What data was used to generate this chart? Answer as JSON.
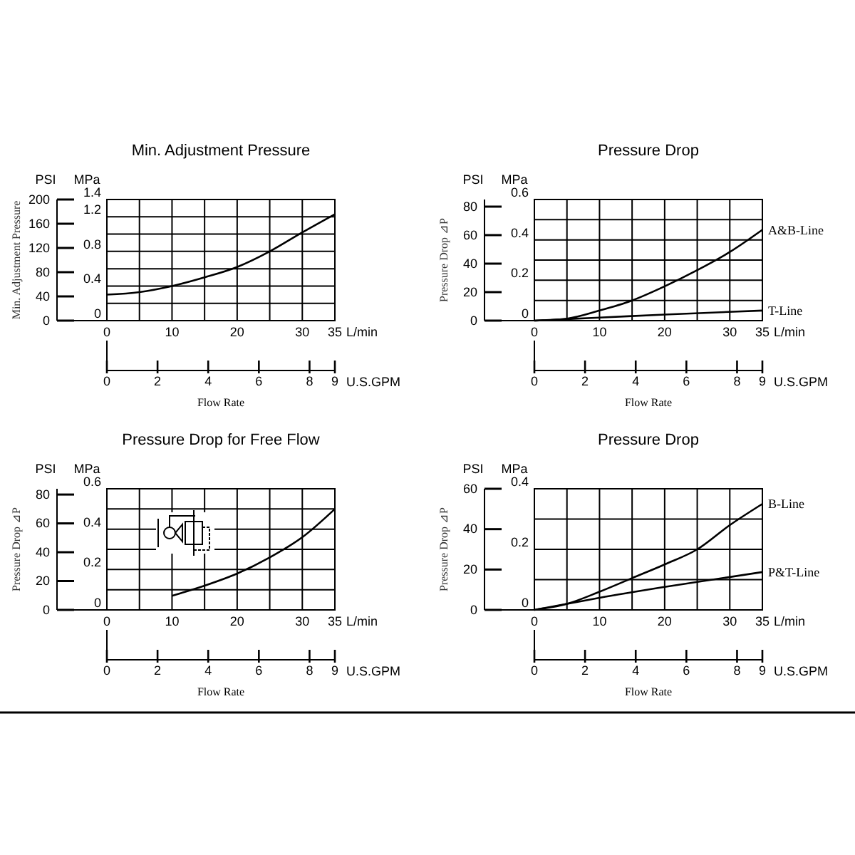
{
  "chart_data": [
    {
      "type": "line",
      "title": "Min. Adjustment Pressure",
      "xlabel": "Flow Rate",
      "y2label": "Min. Adjustment Pressure",
      "annotations": [
        "PSI",
        "MPa",
        "L/min",
        "U.S.GPM"
      ],
      "grid": true,
      "xlim": [
        0,
        35
      ],
      "xticks": [
        0,
        {
          "value": 5,
          "label": null
        },
        10,
        {
          "value": 15,
          "label": null
        },
        20,
        {
          "value": 25,
          "label": null
        },
        30,
        35
      ],
      "ylim": [
        0,
        1.4
      ],
      "yticks": [
        0,
        {
          "value": 0.2,
          "label": null
        },
        0.4,
        {
          "value": 0.6,
          "label": null
        },
        0.8,
        {
          "value": 1.0,
          "label": null
        },
        1.2,
        1.4
      ],
      "y2lim": [
        0,
        200
      ],
      "y2ticks": [
        0,
        40,
        80,
        120,
        160,
        200
      ],
      "x2lim": [
        0,
        9
      ],
      "x2ticks": [
        0,
        2,
        4,
        6,
        8,
        9
      ],
      "series": [
        {
          "color": "#000000",
          "x": [
            0,
            5,
            10,
            15,
            20,
            25,
            30,
            35
          ],
          "values": [
            0.3,
            0.33,
            0.4,
            0.5,
            0.62,
            0.8,
            1.02,
            1.23
          ]
        }
      ]
    },
    {
      "type": "line",
      "title": "Pressure Drop",
      "xlabel": "Flow Rate",
      "y2label": "Pressure Drop ⊿P",
      "annotations": [
        "PSI",
        "MPa",
        "L/min",
        "U.S.GPM"
      ],
      "grid": true,
      "xlim": [
        0,
        35
      ],
      "xticks": [
        0,
        {
          "value": 5,
          "label": null
        },
        10,
        {
          "value": 15,
          "label": null
        },
        20,
        {
          "value": 25,
          "label": null
        },
        30,
        35
      ],
      "ylim": [
        0,
        0.6
      ],
      "yticks": [
        0,
        {
          "value": 0.1,
          "label": null
        },
        0.2,
        {
          "value": 0.3,
          "label": null
        },
        0.4,
        {
          "value": 0.5,
          "label": null
        },
        0.6
      ],
      "y2lim": [
        0,
        85
      ],
      "y2ticks": [
        0,
        20,
        40,
        60,
        80
      ],
      "x2lim": [
        0,
        9
      ],
      "x2ticks": [
        0,
        2,
        4,
        6,
        8,
        9
      ],
      "series": [
        {
          "name": "A&B-Line",
          "color": "#000000",
          "x": [
            0,
            5,
            10,
            15,
            20,
            25,
            30,
            35
          ],
          "values": [
            0,
            0.01,
            0.05,
            0.1,
            0.17,
            0.25,
            0.34,
            0.45
          ]
        },
        {
          "name": "T-Line",
          "color": "#000000",
          "x": [
            0,
            10,
            20,
            35
          ],
          "values": [
            0,
            0.015,
            0.03,
            0.05
          ]
        }
      ]
    },
    {
      "type": "line",
      "title": "Pressure Drop for Free Flow",
      "xlabel": "Flow Rate",
      "y2label": "Pressure Drop ⊿P",
      "annotations": [
        "PSI",
        "MPa",
        "L/min",
        "U.S.GPM"
      ],
      "grid": true,
      "xlim": [
        0,
        35
      ],
      "xticks": [
        0,
        {
          "value": 5,
          "label": null
        },
        10,
        {
          "value": 15,
          "label": null
        },
        20,
        {
          "value": 25,
          "label": null
        },
        30,
        35
      ],
      "ylim": [
        0,
        0.6
      ],
      "yticks": [
        0,
        {
          "value": 0.1,
          "label": null
        },
        0.2,
        {
          "value": 0.3,
          "label": null
        },
        0.4,
        {
          "value": 0.5,
          "label": null
        },
        0.6
      ],
      "y2lim": [
        0,
        84
      ],
      "y2ticks": [
        0,
        20,
        40,
        60,
        80
      ],
      "x2lim": [
        0,
        9
      ],
      "x2ticks": [
        0,
        2,
        4,
        6,
        8,
        9
      ],
      "series": [
        {
          "color": "#000000",
          "x": [
            10,
            15,
            20,
            25,
            30,
            35
          ],
          "values": [
            0.07,
            0.12,
            0.18,
            0.26,
            0.36,
            0.5
          ]
        }
      ]
    },
    {
      "type": "line",
      "title": "Pressure Drop",
      "xlabel": "Flow Rate",
      "y2label": "Pressure Drop ⊿P",
      "annotations": [
        "PSI",
        "MPa",
        "L/min",
        "U.S.GPM"
      ],
      "grid": true,
      "xlim": [
        0,
        35
      ],
      "xticks": [
        0,
        {
          "value": 5,
          "label": null
        },
        10,
        {
          "value": 15,
          "label": null
        },
        20,
        {
          "value": 25,
          "label": null
        },
        30,
        35
      ],
      "ylim": [
        0,
        0.4
      ],
      "yticks": [
        0,
        {
          "value": 0.1,
          "label": null
        },
        0.2,
        {
          "value": 0.3,
          "label": null
        },
        0.4
      ],
      "y2lim": [
        0,
        60
      ],
      "y2ticks": [
        0,
        20,
        40,
        60
      ],
      "x2lim": [
        0,
        9
      ],
      "x2ticks": [
        0,
        2,
        4,
        6,
        8,
        9
      ],
      "series": [
        {
          "name": "B-Line",
          "color": "#000000",
          "x": [
            0,
            5,
            10,
            15,
            20,
            25,
            30,
            35
          ],
          "values": [
            0,
            0.02,
            0.06,
            0.105,
            0.15,
            0.2,
            0.28,
            0.35
          ]
        },
        {
          "name": "P&T-Line",
          "color": "#000000",
          "x": [
            0,
            5,
            10,
            20,
            35
          ],
          "values": [
            0,
            0.02,
            0.04,
            0.076,
            0.125
          ]
        }
      ]
    }
  ]
}
